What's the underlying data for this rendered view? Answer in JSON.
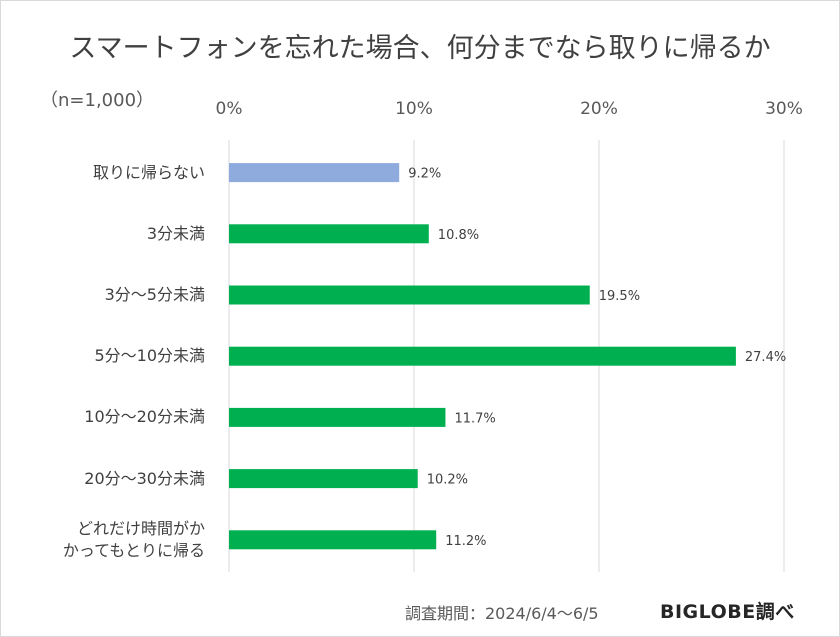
{
  "chart_data": {
    "type": "bar",
    "orientation": "horizontal",
    "title": "スマートフォンを忘れた場合、何分までなら取りに帰るか",
    "sample_size": "（n=1,000）",
    "categories": [
      "取りに帰らない",
      "3分未満",
      "3分～5分未満",
      "5分～10分未満",
      "10分～20分未満",
      "20分～30分未満",
      "どれだけ時間がかかってもとりに帰る"
    ],
    "category_lines": [
      [
        "取りに帰らない"
      ],
      [
        "3分未満"
      ],
      [
        "3分～5分未満"
      ],
      [
        "5分～10分未満"
      ],
      [
        "10分～20分未満"
      ],
      [
        "20分～30分未満"
      ],
      [
        "どれだけ時間がか",
        "かってもとりに帰る"
      ]
    ],
    "values": [
      9.2,
      10.8,
      19.5,
      27.4,
      11.7,
      10.2,
      11.2
    ],
    "data_labels": [
      "9.2%",
      "10.8%",
      "19.5%",
      "27.4%",
      "11.7%",
      "10.2%",
      "11.2%"
    ],
    "bar_colors": [
      "#8faadc",
      "#00b050",
      "#00b050",
      "#00b050",
      "#00b050",
      "#00b050",
      "#00b050"
    ],
    "xlim": [
      0,
      30
    ],
    "x_ticks": [
      0,
      10,
      20,
      30
    ],
    "x_tick_labels": [
      "0%",
      "10%",
      "20%",
      "30%"
    ],
    "grid": true
  },
  "footer": {
    "survey_period": "調査期間：2024/6/4～6/5",
    "source": "BIGLOBE調べ"
  }
}
